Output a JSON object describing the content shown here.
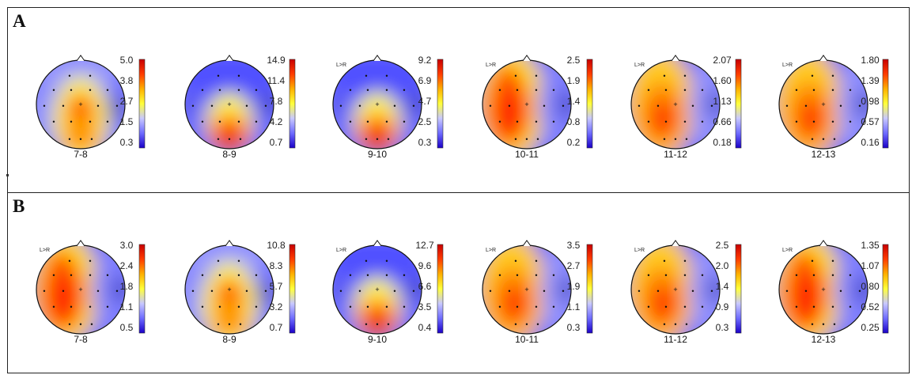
{
  "figure": {
    "panels": [
      {
        "label": "A",
        "maps": [
          {
            "title": "7-8",
            "lr_label": "",
            "ticks": [
              "5.0",
              "3.8",
              "2.7",
              "1.5",
              "0.3"
            ],
            "pattern": "center"
          },
          {
            "title": "8-9",
            "lr_label": "",
            "ticks": [
              "14.9",
              "11.4",
              "7.8",
              "4.2",
              "0.7"
            ],
            "pattern": "posterior"
          },
          {
            "title": "9-10",
            "lr_label": "L>R",
            "ticks": [
              "9.2",
              "6.9",
              "4.7",
              "2.5",
              "0.3"
            ],
            "pattern": "posterior"
          },
          {
            "title": "10-11",
            "lr_label": "L>R",
            "ticks": [
              "2.5",
              "1.9",
              "1.4",
              "0.8",
              "0.2"
            ],
            "pattern": "left-hot"
          },
          {
            "title": "11-12",
            "lr_label": "L>R",
            "ticks": [
              "2.07",
              "1.60",
              "1.13",
              "0.66",
              "0.18"
            ],
            "pattern": "left-warm"
          },
          {
            "title": "12-13",
            "lr_label": "L>R",
            "ticks": [
              "1.80",
              "1.39",
              "0.98",
              "0.57",
              "0.16"
            ],
            "pattern": "left-warm"
          }
        ]
      },
      {
        "label": "B",
        "maps": [
          {
            "title": "7-8",
            "lr_label": "L>R",
            "ticks": [
              "3.0",
              "2.4",
              "1.8",
              "1.1",
              "0.5"
            ],
            "pattern": "left-hot"
          },
          {
            "title": "8-9",
            "lr_label": "",
            "ticks": [
              "10.8",
              "8.3",
              "5.7",
              "3.2",
              "0.7"
            ],
            "pattern": "center"
          },
          {
            "title": "9-10",
            "lr_label": "L>R",
            "ticks": [
              "12.7",
              "9.6",
              "6.6",
              "3.5",
              "0.4"
            ],
            "pattern": "posterior"
          },
          {
            "title": "10-11",
            "lr_label": "L>R",
            "ticks": [
              "3.5",
              "2.7",
              "1.9",
              "1.1",
              "0.3"
            ],
            "pattern": "left-warm"
          },
          {
            "title": "11-12",
            "lr_label": "L>R",
            "ticks": [
              "2.5",
              "2.0",
              "1.4",
              "0.9",
              "0.3"
            ],
            "pattern": "left-warm"
          },
          {
            "title": "12-13",
            "lr_label": "L>R",
            "ticks": [
              "1.35",
              "1.07",
              "0.80",
              "0.52",
              "0.25"
            ],
            "pattern": "left-hot"
          }
        ]
      }
    ],
    "colormap": [
      "#1a00c8",
      "#6f6cff",
      "#c8c8ff",
      "#ffff3a",
      "#ffb000",
      "#ff3c00",
      "#c80000"
    ]
  }
}
